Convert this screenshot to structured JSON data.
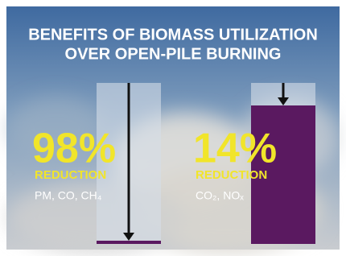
{
  "chart_data": {
    "type": "bar",
    "title": "BENEFITS OF BIOMASS UTILIZATION",
    "subtitle": "OVER OPEN-PILE BURNING",
    "categories": [
      "PM, CO, CH₄",
      "CO₂, NOₓ"
    ],
    "values": [
      98,
      14
    ],
    "value_labels": [
      "98%",
      "14%"
    ],
    "value_caption": "REDUCTION",
    "color": "#5a1960",
    "ylim": [
      0,
      100
    ]
  }
}
